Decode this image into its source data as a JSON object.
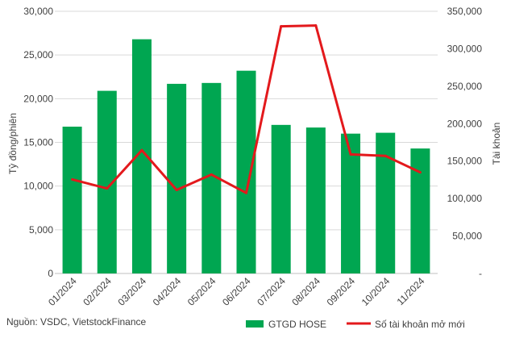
{
  "chart_data": {
    "type": "bar",
    "categories": [
      "01/2024",
      "02/2024",
      "03/2024",
      "04/2024",
      "05/2024",
      "06/2024",
      "07/2024",
      "08/2024",
      "09/2024",
      "10/2024",
      "11/2024"
    ],
    "series": [
      {
        "name": "GTGD HOSE",
        "kind": "bar",
        "axis": "left",
        "color": "#00a651",
        "values": [
          16800,
          20900,
          26800,
          21700,
          21800,
          23200,
          17000,
          16700,
          16000,
          16100,
          14300
        ]
      },
      {
        "name": "Số tài khoản mở mới",
        "kind": "line",
        "axis": "right",
        "color": "#e3191c",
        "values": [
          125500,
          113500,
          164500,
          111500,
          132000,
          107500,
          330000,
          331000,
          159000,
          157000,
          135000
        ]
      }
    ],
    "ylabel_left": "Tỷ đồng/phiên",
    "ylabel_right": "Tài khoản",
    "ylim_left": [
      0,
      30000
    ],
    "ylim_right": [
      0,
      350000
    ],
    "yticks_left": [
      "0",
      "5,000",
      "10,000",
      "15,000",
      "20,000",
      "25,000",
      "30,000"
    ],
    "yticks_right": [
      "-",
      "50,000",
      "100,000",
      "150,000",
      "200,000",
      "250,000",
      "300,000",
      "350,000"
    ],
    "grid": true,
    "legend": "bottom"
  },
  "source": "Nguồn: VSDC, VietstockFinance"
}
